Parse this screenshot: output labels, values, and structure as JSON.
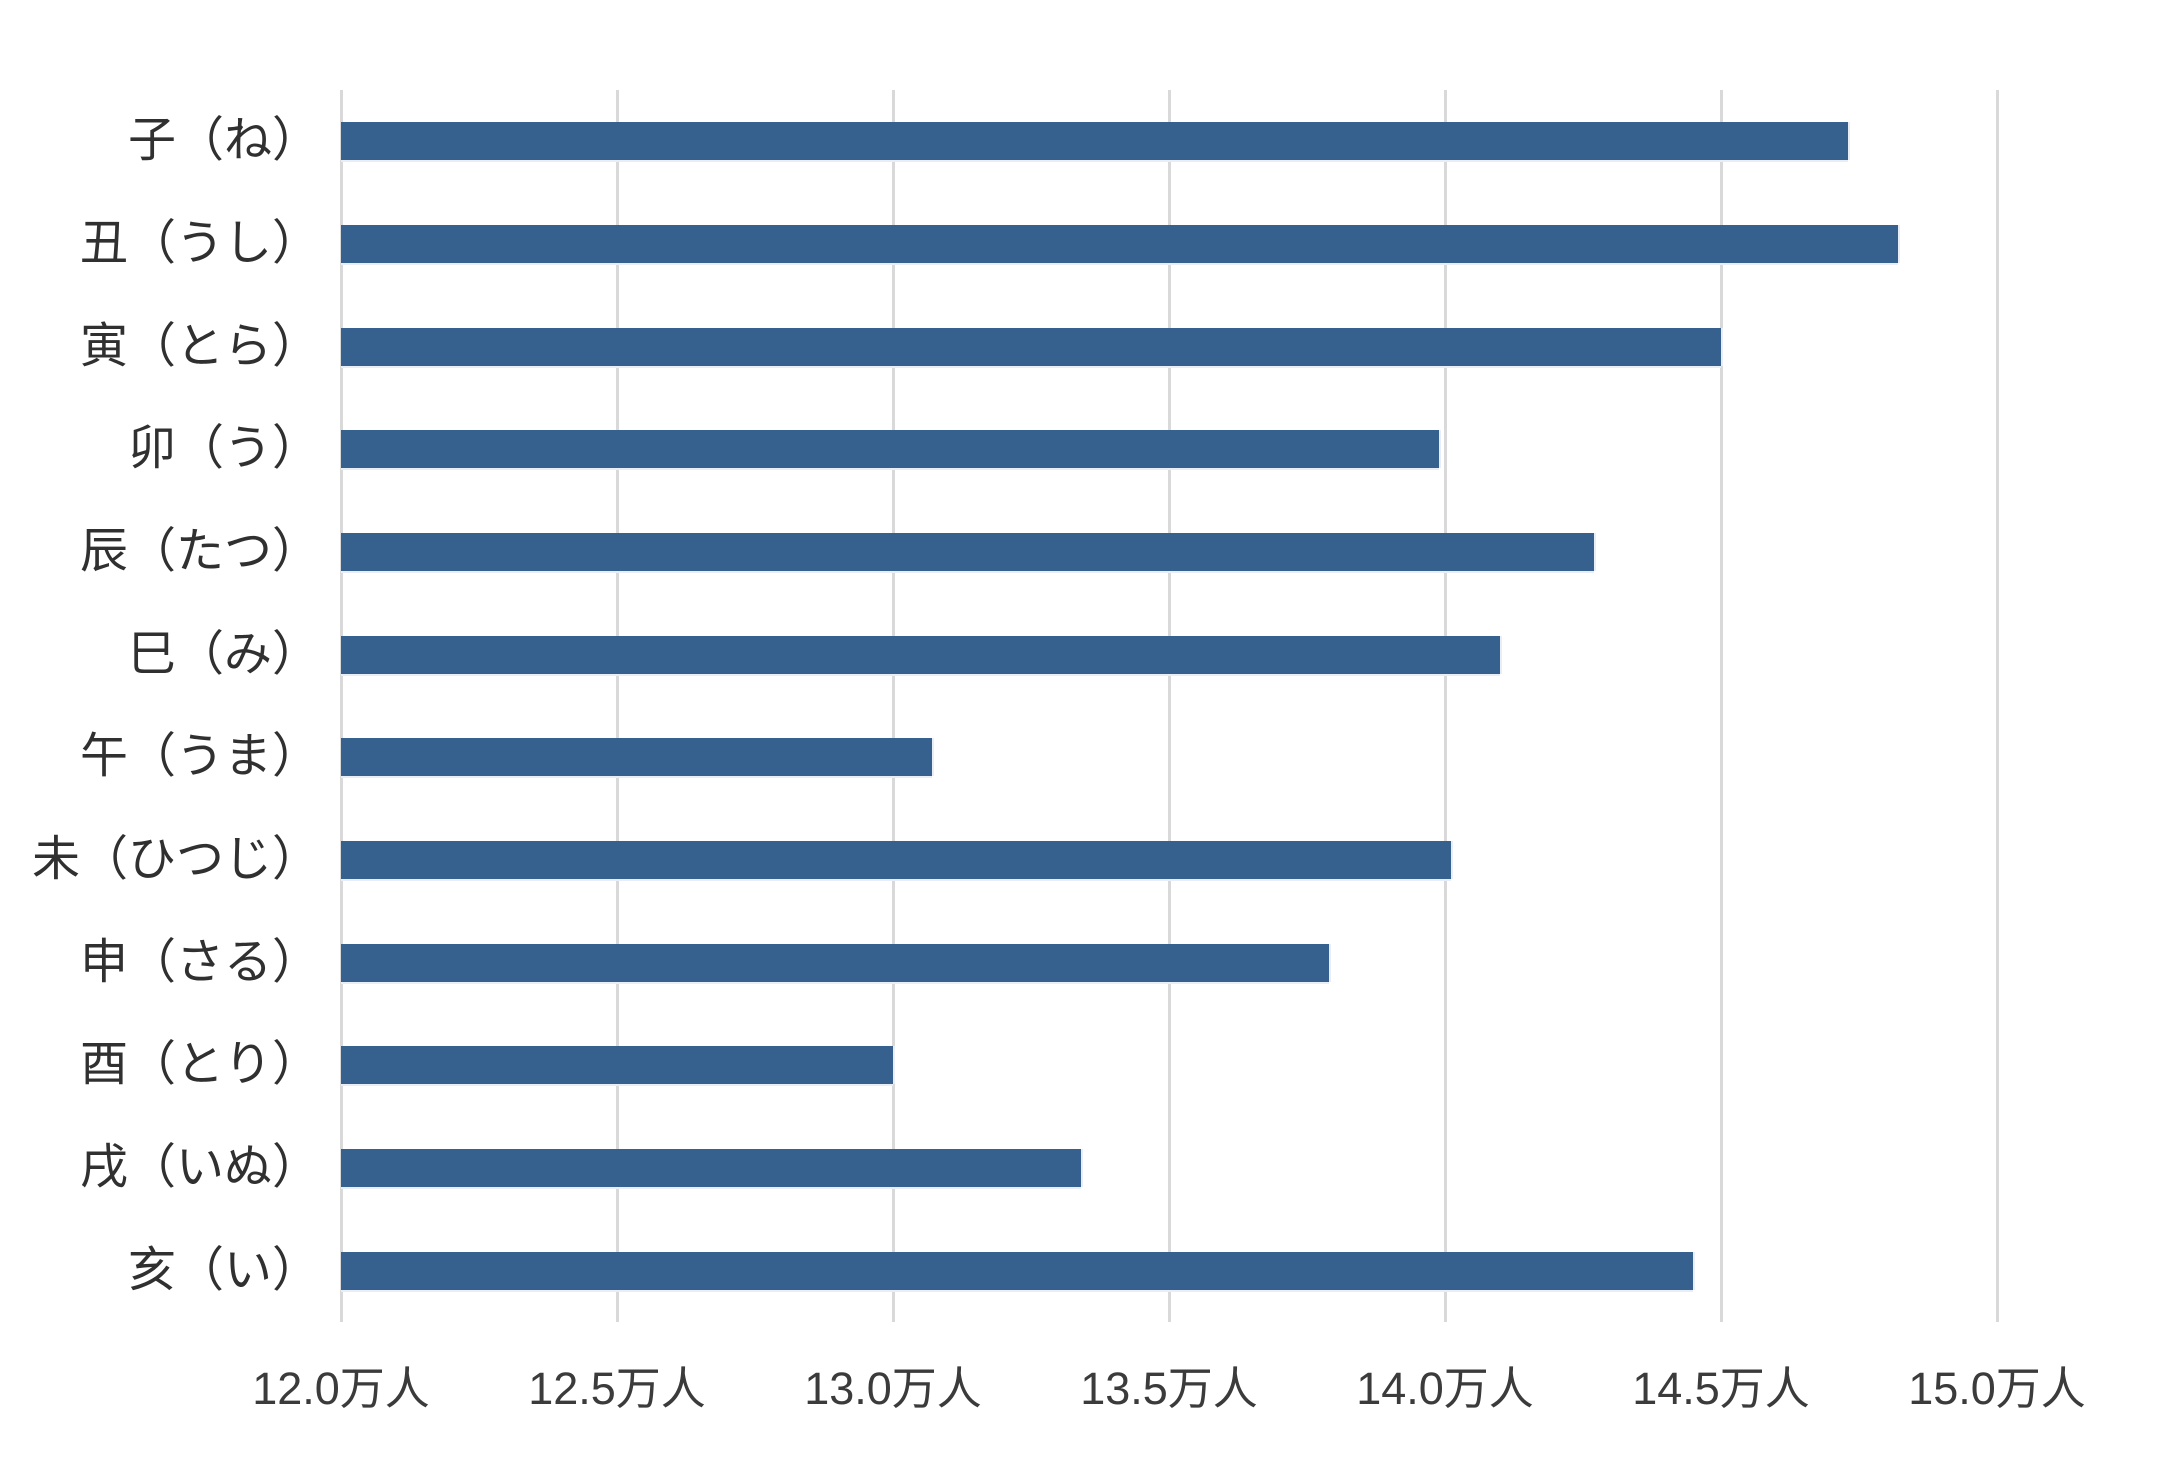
{
  "chart_data": {
    "type": "bar",
    "orientation": "horizontal",
    "title": "",
    "xlabel": "",
    "ylabel": "",
    "unit": "万人",
    "categories": [
      "子（ね）",
      "丑（うし）",
      "寅（とら）",
      "卯（う）",
      "辰（たつ）",
      "巳（み）",
      "午（うま）",
      "未（ひつじ）",
      "申（さる）",
      "酉（とり）",
      "戌（いぬ）",
      "亥（い）"
    ],
    "values": [
      14.73,
      14.82,
      14.5,
      13.99,
      14.27,
      14.1,
      13.07,
      14.01,
      13.79,
      13.0,
      13.34,
      14.45
    ],
    "x_axis": {
      "min": 12.0,
      "max": 15.0,
      "step": 0.5,
      "tick_labels": [
        "12.0万人",
        "12.5万人",
        "13.0万人",
        "13.5万人",
        "14.0万人",
        "14.5万人",
        "15.0万人"
      ]
    },
    "grid": true,
    "legend": false,
    "colors": {
      "bar": "#36618f",
      "gridline": "#d9d9d9",
      "tick_text": "#3b3b3b",
      "category_text": "#303030",
      "background": "#ffffff"
    }
  }
}
